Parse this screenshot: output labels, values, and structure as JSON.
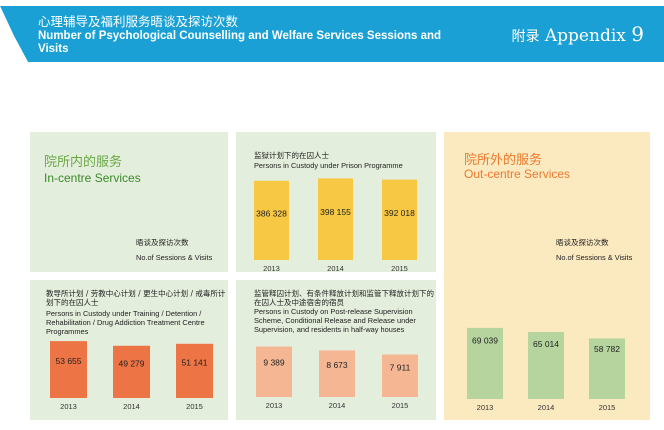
{
  "header": {
    "title_zh": "心理辅导及福利服务晤谈及探访次数",
    "title_en": "Number of Psychological Counselling and Welfare Services Sessions and Visits",
    "appendix_zh": "附录",
    "appendix_en": "Appendix",
    "appendix_num": "9"
  },
  "colors": {
    "banner": "#1aa0d4",
    "green_panel": "#e4eedc",
    "yellow_panel": "#fbe9c0",
    "zh_label_green": "#6aa844",
    "zh_label_orange": "#ec7a2e"
  },
  "incentre": {
    "label_zh": "院所内的服务",
    "label_en": "In-centre Services",
    "sessions_zh": "晤谈及探访次数",
    "sessions_en": "No.of Sessions & Visits"
  },
  "outcentre": {
    "label_zh": "院所外的服务",
    "label_en": "Out-centre Services",
    "sessions_zh": "晤谈及探访次数",
    "sessions_en": "No.of Sessions & Visits"
  },
  "chart_data": [
    {
      "type": "bar",
      "title_zh": "监狱计划下的在囚人士",
      "title_en": "Persons in Custody under Prison Programme",
      "categories": [
        "2013",
        "2014",
        "2015"
      ],
      "values": [
        386328,
        398155,
        392018
      ],
      "value_labels": [
        "386 328",
        "398 155",
        "392 018"
      ],
      "color": "#f7c843"
    },
    {
      "type": "bar",
      "title_zh": "教导所计划 / 劳教中心计划 / 更生中心计划 / 戒毒所计划下的在囚人士",
      "title_en": "Persons in Custody under Training / Detention / Rehabilitation / Drug Addiction Treatment Centre Programmes",
      "categories": [
        "2013",
        "2014",
        "2015"
      ],
      "values": [
        53655,
        49279,
        51141
      ],
      "value_labels": [
        "53 655",
        "49 279",
        "51 141"
      ],
      "color": "#ed7444"
    },
    {
      "type": "bar",
      "title_zh": "监管释囚计划、有条件释放计划和监管下释放计划下的在囚人士及中途宿舍的宿员",
      "title_en": "Persons in Custody on Post-release Supervision Scheme, Conditional Release and Release under Supervision, and residents in half-way houses",
      "categories": [
        "2013",
        "2014",
        "2015"
      ],
      "values": [
        9389,
        8673,
        7911
      ],
      "value_labels": [
        "9 389",
        "8 673",
        "7 911"
      ],
      "color": "#f5b793"
    },
    {
      "type": "bar",
      "title_zh": "",
      "title_en": "",
      "categories": [
        "2013",
        "2014",
        "2015"
      ],
      "values": [
        69039,
        65014,
        58782
      ],
      "value_labels": [
        "69 039",
        "65 014",
        "58 782"
      ],
      "color": "#b6d49e"
    }
  ]
}
